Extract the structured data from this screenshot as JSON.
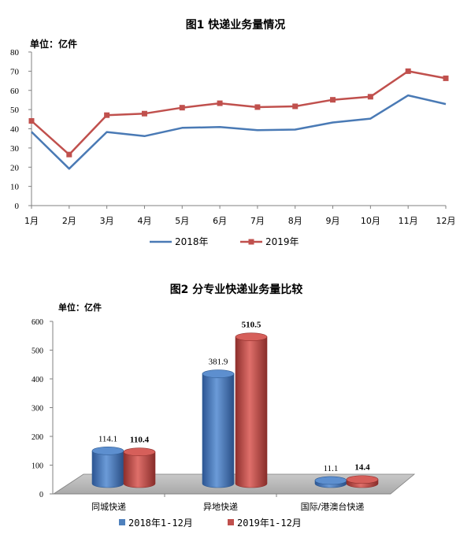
{
  "chart_data": [
    {
      "type": "line",
      "title": "图1    快递业务量情况",
      "unit_label": "单位：亿件",
      "categories": [
        "1月",
        "2月",
        "3月",
        "4月",
        "5月",
        "6月",
        "7月",
        "8月",
        "9月",
        "10月",
        "11月",
        "12月"
      ],
      "ylim": [
        0,
        80
      ],
      "yticks": [
        0,
        10,
        20,
        30,
        40,
        50,
        60,
        70,
        80
      ],
      "legend_position": "bottom",
      "grid": false,
      "series": [
        {
          "name": "2018年",
          "color": "#4a7ab5",
          "marker": "none",
          "values": [
            38.4,
            19.2,
            38.3,
            36.2,
            40.5,
            40.9,
            39.3,
            39.6,
            43.3,
            45.3,
            57.4,
            52.9
          ]
        },
        {
          "name": "2019年",
          "color": "#c0504d",
          "marker": "square",
          "values": [
            44.1,
            26.6,
            47.1,
            47.9,
            51.0,
            53.3,
            51.3,
            51.7,
            55.1,
            56.7,
            70.0,
            66.3
          ]
        }
      ]
    },
    {
      "type": "bar",
      "style": "3d-cylinder",
      "title": "图2    分专业快递业务量比较",
      "unit_label": "单位：亿件",
      "categories": [
        "同城快递",
        "异地快递",
        "国际/港澳台快递"
      ],
      "ylim": [
        0,
        600
      ],
      "yticks": [
        0,
        100,
        200,
        300,
        400,
        500,
        600
      ],
      "legend_position": "bottom",
      "series": [
        {
          "name": "2018年1-12月",
          "color": "#4f81bd",
          "values": [
            114.1,
            381.9,
            11.1
          ],
          "labels": [
            "114.1",
            "381.9",
            "11.1"
          ]
        },
        {
          "name": "2019年1-12月",
          "color": "#c0504d",
          "values": [
            110.4,
            510.5,
            14.4
          ],
          "labels": [
            "110.4",
            "510.5",
            "14.4"
          ]
        }
      ]
    }
  ]
}
